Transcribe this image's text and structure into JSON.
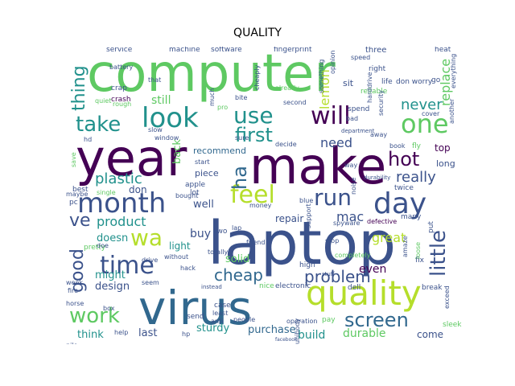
{
  "title": "QUALITY",
  "words": [
    {
      "text": "computer",
      "color": "#5ec962"
    },
    {
      "text": "laptop",
      "color": "#3b528b"
    },
    {
      "text": "year",
      "color": "#440154"
    },
    {
      "text": "make",
      "color": "#440154"
    },
    {
      "text": "virus",
      "color": "#31688e"
    },
    {
      "text": "quality",
      "color": "#b5de2b"
    },
    {
      "text": "look",
      "color": "#21918c"
    },
    {
      "text": "month",
      "color": "#3b528b"
    },
    {
      "text": "time",
      "color": "#3b528b"
    },
    {
      "text": "day",
      "color": "#3b528b"
    },
    {
      "text": "wa",
      "color": "#b5de2b"
    },
    {
      "text": "one",
      "color": "#5ec962"
    },
    {
      "text": "feel",
      "color": "#b5de2b"
    },
    {
      "text": "take",
      "color": "#21918c"
    },
    {
      "text": "run",
      "color": "#3b528b"
    },
    {
      "text": "use",
      "color": "#21918c"
    },
    {
      "text": "will",
      "color": "#440154"
    },
    {
      "text": "work",
      "color": "#5ec962"
    },
    {
      "text": "screen",
      "color": "#31688e"
    },
    {
      "text": "problem",
      "color": "#3b528b"
    },
    {
      "text": "little",
      "color": "#3b528b"
    },
    {
      "text": "first",
      "color": "#21918c"
    },
    {
      "text": "hot",
      "color": "#440154"
    },
    {
      "text": "cheap",
      "color": "#31688e"
    },
    {
      "text": "ha",
      "color": "#31688e"
    },
    {
      "text": "never",
      "color": "#21918c"
    },
    {
      "text": "thing",
      "color": "#21918c"
    },
    {
      "text": "good",
      "color": "#3b528b"
    },
    {
      "text": "ve",
      "color": "#3b528b"
    },
    {
      "text": "product",
      "color": "#21918c"
    },
    {
      "text": "plastic",
      "color": "#21918c"
    },
    {
      "text": "really",
      "color": "#3b528b"
    },
    {
      "text": "need",
      "color": "#3b528b"
    },
    {
      "text": "lemon",
      "color": "#b5de2b"
    },
    {
      "text": "replace",
      "color": "#5ec962"
    },
    {
      "text": "mac",
      "color": "#3b528b"
    },
    {
      "text": "great",
      "color": "#b5de2b"
    },
    {
      "text": "still",
      "color": "#5ec962"
    },
    {
      "text": "build",
      "color": "#21918c"
    },
    {
      "text": "durable",
      "color": "#5ec962"
    },
    {
      "text": "sturdy",
      "color": "#21918c"
    },
    {
      "text": "purchase",
      "color": "#31688e"
    },
    {
      "text": "design",
      "color": "#3b528b"
    },
    {
      "text": "might",
      "color": "#21918c"
    },
    {
      "text": "last",
      "color": "#3b528b"
    },
    {
      "text": "think",
      "color": "#21918c"
    },
    {
      "text": "solid",
      "color": "#5ec962"
    },
    {
      "text": "buy",
      "color": "#3b528b"
    },
    {
      "text": "doesn",
      "color": "#21918c"
    },
    {
      "text": "repair",
      "color": "#3b528b"
    },
    {
      "text": "even",
      "color": "#440154"
    },
    {
      "text": "come",
      "color": "#3b528b"
    },
    {
      "text": "well",
      "color": "#3b528b"
    },
    {
      "text": "light",
      "color": "#21918c"
    },
    {
      "text": "recommend",
      "color": "#31688e"
    },
    {
      "text": "back",
      "color": "#5ec962"
    },
    {
      "text": "piece",
      "color": "#3b528b"
    },
    {
      "text": "top",
      "color": "#440154"
    },
    {
      "text": "long",
      "color": "#3b528b"
    },
    {
      "text": "don",
      "color": "#3b528b"
    },
    {
      "text": "machine",
      "color": "#3b528b"
    },
    {
      "text": "software",
      "color": "#3b528b"
    },
    {
      "text": "fingerprint",
      "color": "#3b528b"
    },
    {
      "text": "three",
      "color": "#3b528b"
    },
    {
      "text": "heat",
      "color": "#3b528b"
    },
    {
      "text": "service",
      "color": "#3b528b"
    },
    {
      "text": "crap",
      "color": "#3b528b"
    },
    {
      "text": "sit",
      "color": "#3b528b"
    },
    {
      "text": "don worry",
      "color": "#3b528b"
    },
    {
      "text": "crash",
      "color": "#440154"
    },
    {
      "text": "quiet",
      "color": "#5ec962"
    },
    {
      "text": "bite",
      "color": "#3b528b"
    },
    {
      "text": "reliable",
      "color": "#5ec962"
    },
    {
      "text": "right",
      "color": "#3b528b"
    },
    {
      "text": "life",
      "color": "#3b528b"
    },
    {
      "text": "go",
      "color": "#3b528b"
    },
    {
      "text": "everything",
      "color": "#3b528b"
    },
    {
      "text": "spend",
      "color": "#3b528b"
    },
    {
      "text": "bad",
      "color": "#3b528b"
    },
    {
      "text": "cover",
      "color": "#3b528b"
    },
    {
      "text": "book",
      "color": "#3b528b"
    },
    {
      "text": "fly",
      "color": "#5ec962"
    },
    {
      "text": "start",
      "color": "#3b528b"
    },
    {
      "text": "apple",
      "color": "#3b528b"
    },
    {
      "text": "money",
      "color": "#3b528b"
    },
    {
      "text": "twice",
      "color": "#3b528b"
    },
    {
      "text": "lot",
      "color": "#3b528b"
    },
    {
      "text": "bought",
      "color": "#3b528b"
    },
    {
      "text": "blue",
      "color": "#3b528b"
    },
    {
      "text": "noise",
      "color": "#3b528b"
    },
    {
      "text": "many",
      "color": "#3b528b"
    },
    {
      "text": "two",
      "color": "#3b528b"
    },
    {
      "text": "lap",
      "color": "#3b528b"
    },
    {
      "text": "friend",
      "color": "#3b528b"
    },
    {
      "text": "stop",
      "color": "#3b528b"
    },
    {
      "text": "defective",
      "color": "#440154"
    },
    {
      "text": "put",
      "color": "#3b528b"
    },
    {
      "text": "pretty",
      "color": "#5ec962"
    },
    {
      "text": "without",
      "color": "#3b528b"
    },
    {
      "text": "totally",
      "color": "#3b528b"
    },
    {
      "text": "high",
      "color": "#3b528b"
    },
    {
      "text": "completely",
      "color": "#5ec962"
    },
    {
      "text": "fix",
      "color": "#3b528b"
    },
    {
      "text": "hack",
      "color": "#3b528b"
    },
    {
      "text": "seem",
      "color": "#3b528b"
    },
    {
      "text": "nice",
      "color": "#5ec962"
    },
    {
      "text": "electronic",
      "color": "#3b528b"
    },
    {
      "text": "dell",
      "color": "#3b528b"
    },
    {
      "text": "break",
      "color": "#3b528b"
    },
    {
      "text": "case",
      "color": "#3b528b"
    },
    {
      "text": "least",
      "color": "#3b528b"
    },
    {
      "text": "send",
      "color": "#3b528b"
    },
    {
      "text": "anti",
      "color": "#3b528b"
    },
    {
      "text": "people",
      "color": "#3b528b"
    },
    {
      "text": "pay",
      "color": "#5ec962"
    },
    {
      "text": "operation",
      "color": "#3b528b"
    },
    {
      "text": "sleek",
      "color": "#5ec962"
    },
    {
      "text": "hp",
      "color": "#3b528b"
    },
    {
      "text": "pc",
      "color": "#3b528b"
    },
    {
      "text": "best",
      "color": "#3b528b"
    },
    {
      "text": "maybe",
      "color": "#3b528b"
    },
    {
      "text": "single",
      "color": "#5ec962"
    },
    {
      "text": "week",
      "color": "#3b528b"
    },
    {
      "text": "fire",
      "color": "#3b528b"
    },
    {
      "text": "help",
      "color": "#3b528b"
    },
    {
      "text": "pile",
      "color": "#3b528b"
    },
    {
      "text": "doe",
      "color": "#3b528b"
    },
    {
      "text": "drive",
      "color": "#3b528b"
    },
    {
      "text": "unibody",
      "color": "#3b528b"
    },
    {
      "text": "spyware",
      "color": "#3b528b"
    },
    {
      "text": "slow",
      "color": "#3b528b"
    },
    {
      "text": "hd",
      "color": "#3b528b"
    },
    {
      "text": "rough",
      "color": "#5ec962"
    },
    {
      "text": "that",
      "color": "#3b528b"
    },
    {
      "text": "already",
      "color": "#5ec962"
    },
    {
      "text": "second",
      "color": "#3b528b"
    },
    {
      "text": "much",
      "color": "#3b528b"
    },
    {
      "text": "pro",
      "color": "#5ec962"
    },
    {
      "text": "speed",
      "color": "#3b528b"
    },
    {
      "text": "battery",
      "color": "#3b528b"
    },
    {
      "text": "opinion",
      "color": "#3b528b"
    },
    {
      "text": "something",
      "color": "#3b528b"
    },
    {
      "text": "security",
      "color": "#3b528b"
    },
    {
      "text": "cheaply",
      "color": "#3b528b"
    },
    {
      "text": "harddrive",
      "color": "#3b528b"
    },
    {
      "text": "another",
      "color": "#3b528b"
    },
    {
      "text": "department",
      "color": "#3b528b"
    },
    {
      "text": "decide",
      "color": "#3b528b"
    },
    {
      "text": "away",
      "color": "#3b528b"
    },
    {
      "text": "way",
      "color": "#3b528b"
    },
    {
      "text": "save",
      "color": "#5ec962"
    },
    {
      "text": "sure",
      "color": "#3b528b"
    },
    {
      "text": "window",
      "color": "#3b528b"
    },
    {
      "text": "support",
      "color": "#3b528b"
    },
    {
      "text": "durability",
      "color": "#3b528b"
    },
    {
      "text": "amaze",
      "color": "#3b528b"
    },
    {
      "text": "loose",
      "color": "#5ec962"
    },
    {
      "text": "exceed",
      "color": "#3b528b"
    },
    {
      "text": "horse",
      "color": "#3b528b"
    },
    {
      "text": "box",
      "color": "#3b528b"
    },
    {
      "text": "facebook",
      "color": "#3b528b"
    },
    {
      "text": "stuff",
      "color": "#3b528b"
    },
    {
      "text": "instead",
      "color": "#3b528b"
    }
  ]
}
